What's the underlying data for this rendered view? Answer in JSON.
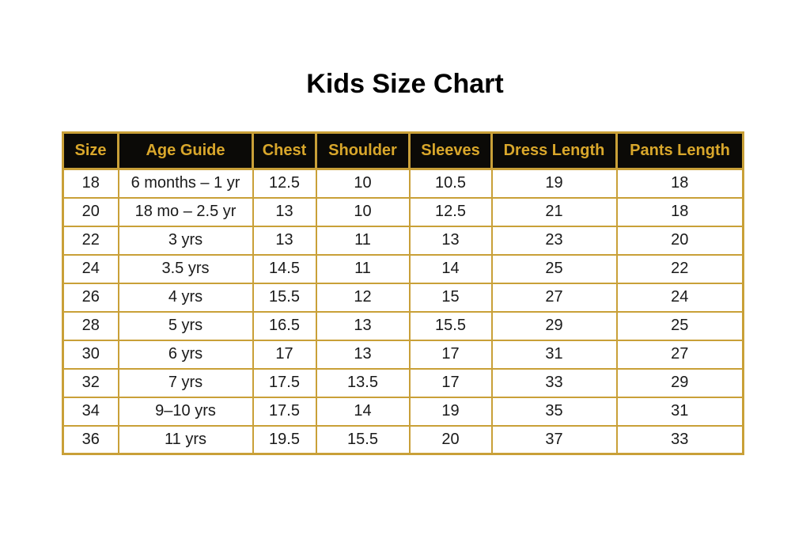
{
  "title": "Kids Size Chart",
  "colors": {
    "gold_border": "#C9A038",
    "header_background": "#0B0A07",
    "header_text": "#D9A72B",
    "body_text": "#1A1A1A",
    "title_text": "#000000",
    "page_background": "#FFFFFF"
  },
  "chart_data": {
    "type": "table",
    "title": "Kids Size Chart",
    "columns": [
      "Size",
      "Age Guide",
      "Chest",
      "Shoulder",
      "Sleeves",
      "Dress Length",
      "Pants Length"
    ],
    "rows": [
      [
        "18",
        "6 months – 1 yr",
        "12.5",
        "10",
        "10.5",
        "19",
        "18"
      ],
      [
        "20",
        "18 mo – 2.5 yr",
        "13",
        "10",
        "12.5",
        "21",
        "18"
      ],
      [
        "22",
        "3 yrs",
        "13",
        "11",
        "13",
        "23",
        "20"
      ],
      [
        "24",
        "3.5 yrs",
        "14.5",
        "11",
        "14",
        "25",
        "22"
      ],
      [
        "26",
        "4 yrs",
        "15.5",
        "12",
        "15",
        "27",
        "24"
      ],
      [
        "28",
        "5 yrs",
        "16.5",
        "13",
        "15.5",
        "29",
        "25"
      ],
      [
        "30",
        "6 yrs",
        "17",
        "13",
        "17",
        "31",
        "27"
      ],
      [
        "32",
        "7 yrs",
        "17.5",
        "13.5",
        "17",
        "33",
        "29"
      ],
      [
        "34",
        "9–10 yrs",
        "17.5",
        "14",
        "19",
        "35",
        "31"
      ],
      [
        "36",
        "11 yrs",
        "19.5",
        "15.5",
        "20",
        "37",
        "33"
      ]
    ]
  }
}
